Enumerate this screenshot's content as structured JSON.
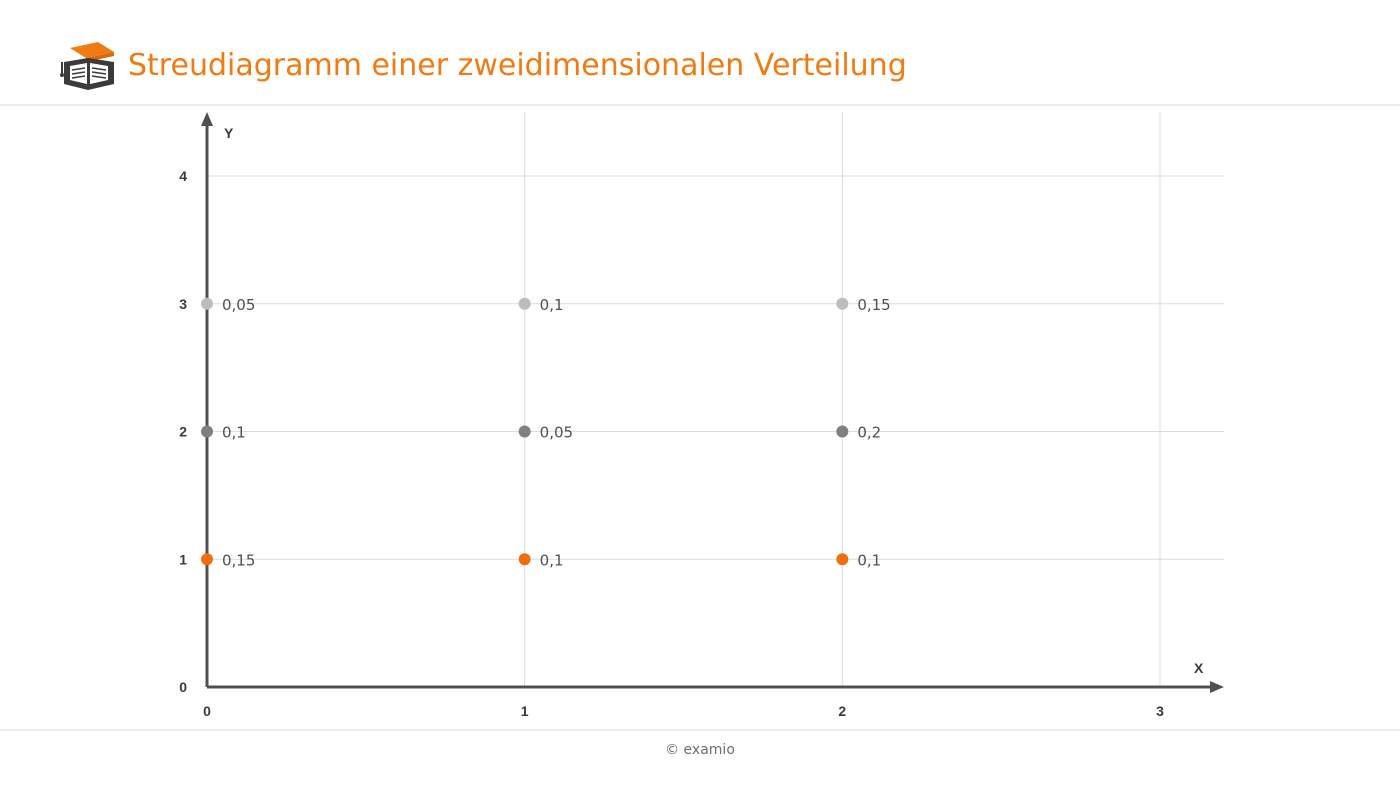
{
  "header": {
    "title": "Streudiagramm einer zweidimensionalen Verteilung",
    "title_color": "#f07b12",
    "logo_icon": "graduation-cap-book-icon"
  },
  "chart_data": {
    "type": "scatter",
    "title": "Streudiagramm einer zweidimensionalen Verteilung",
    "xlabel": "X",
    "ylabel": "Y",
    "xlim": [
      0,
      3
    ],
    "ylim": [
      0,
      4
    ],
    "x_ticks": [
      "0",
      "1",
      "2",
      "3"
    ],
    "y_ticks": [
      "0",
      "1",
      "2",
      "3",
      "4"
    ],
    "grid": true,
    "points": [
      {
        "x": 0,
        "y": 3,
        "label": "0,05",
        "color": "#bdbdbd"
      },
      {
        "x": 1,
        "y": 3,
        "label": "0,1",
        "color": "#bdbdbd"
      },
      {
        "x": 2,
        "y": 3,
        "label": "0,15",
        "color": "#bdbdbd"
      },
      {
        "x": 0,
        "y": 2,
        "label": "0,1",
        "color": "#7f7f7f"
      },
      {
        "x": 1,
        "y": 2,
        "label": "0,05",
        "color": "#7f7f7f"
      },
      {
        "x": 2,
        "y": 2,
        "label": "0,2",
        "color": "#7f7f7f"
      },
      {
        "x": 0,
        "y": 1,
        "label": "0,15",
        "color": "#f26f0a"
      },
      {
        "x": 1,
        "y": 1,
        "label": "0,1",
        "color": "#f26f0a"
      },
      {
        "x": 2,
        "y": 1,
        "label": "0,1",
        "color": "#f26f0a"
      }
    ],
    "colors": {
      "axis": "#505050",
      "grid": "#dcdcdc",
      "tick_label": "#3a3a3a",
      "data_label": "#505050"
    }
  },
  "footer": {
    "copyright": "© examio"
  }
}
